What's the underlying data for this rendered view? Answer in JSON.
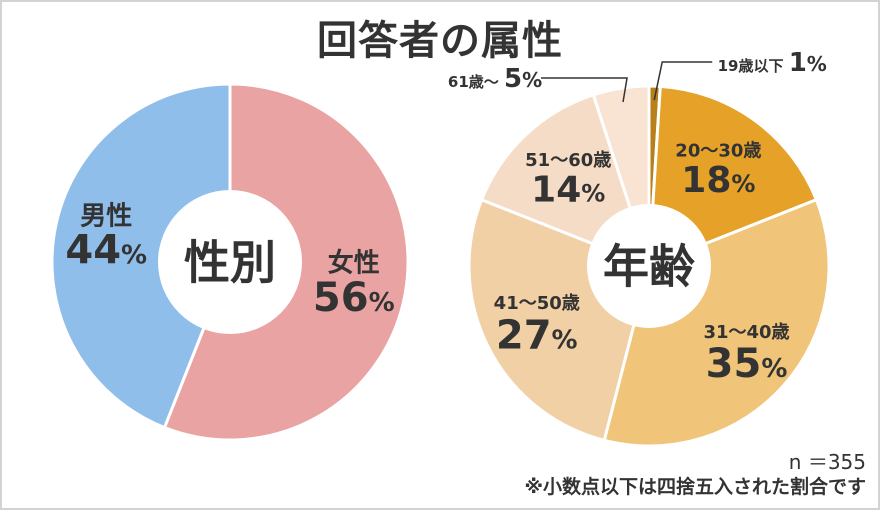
{
  "title": "回答者の属性",
  "notes": {
    "sample": "n ＝355",
    "rounding": "※小数点以下は四捨五入された割合です"
  },
  "chart_data": [
    {
      "type": "pie",
      "center_label": "性別",
      "series": [
        {
          "name": "女性",
          "value": 56,
          "color": "#e8a3a2"
        },
        {
          "name": "男性",
          "value": 44,
          "color": "#8fbeea"
        }
      ]
    },
    {
      "type": "pie",
      "center_label": "年齢",
      "series": [
        {
          "name": "19歳以下",
          "value": 1,
          "color": "#b8801a"
        },
        {
          "name": "20～30歳",
          "value": 18,
          "color": "#e6a228"
        },
        {
          "name": "31～40歳",
          "value": 35,
          "color": "#f0c479"
        },
        {
          "name": "41～50歳",
          "value": 27,
          "color": "#f0d0a4"
        },
        {
          "name": "51～60歳",
          "value": 14,
          "color": "#f5dcc6"
        },
        {
          "name": "61歳～",
          "value": 5,
          "color": "#f9e3d3"
        }
      ]
    }
  ]
}
